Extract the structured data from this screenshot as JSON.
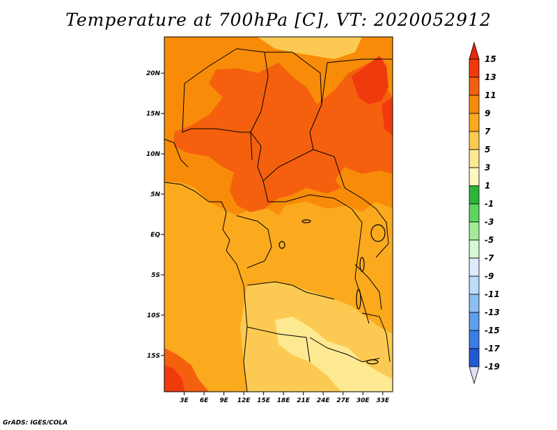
{
  "title": "Temperature at 700hPa [C], VT: 2020052912",
  "credit": "GrADS: IGES/COLA",
  "map": {
    "lon_range": [
      0,
      34.5
    ],
    "lat_range": [
      -19.5,
      24.5
    ],
    "lat_ticks": [
      {
        "value": 20,
        "label": "20N"
      },
      {
        "value": 15,
        "label": "15N"
      },
      {
        "value": 10,
        "label": "10N"
      },
      {
        "value": 5,
        "label": "5N"
      },
      {
        "value": 0,
        "label": "EQ"
      },
      {
        "value": -5,
        "label": "5S"
      },
      {
        "value": -10,
        "label": "10S"
      },
      {
        "value": -15,
        "label": "15S"
      }
    ],
    "lon_ticks": [
      {
        "value": 3,
        "label": "3E"
      },
      {
        "value": 6,
        "label": "6E"
      },
      {
        "value": 9,
        "label": "9E"
      },
      {
        "value": 12,
        "label": "12E"
      },
      {
        "value": 15,
        "label": "15E"
      },
      {
        "value": 18,
        "label": "18E"
      },
      {
        "value": 21,
        "label": "21E"
      },
      {
        "value": 24,
        "label": "24E"
      },
      {
        "value": 27,
        "label": "27E"
      },
      {
        "value": 30,
        "label": "30E"
      },
      {
        "value": 33,
        "label": "33E"
      }
    ]
  },
  "colorbar": {
    "labels": [
      "15",
      "13",
      "11",
      "9",
      "7",
      "5",
      "3",
      "1",
      "-1",
      "-3",
      "-5",
      "-7",
      "-9",
      "-11",
      "-13",
      "-15",
      "-17",
      "-19"
    ],
    "over_color": "#e8280c",
    "under_color": "#e2dff5",
    "colors": [
      "#f03a0e",
      "#f4600e",
      "#f88c08",
      "#fbaa1e",
      "#fcca52",
      "#fde992",
      "#fdf8c0",
      "#2fb33a",
      "#5ed55e",
      "#a4ec9a",
      "#d6f8d2",
      "#dcecfb",
      "#bcdcfa",
      "#8cbef4",
      "#5e9eee",
      "#3c7ee6",
      "#2358d3",
      "#1534b0",
      "#0c1478"
    ]
  }
}
